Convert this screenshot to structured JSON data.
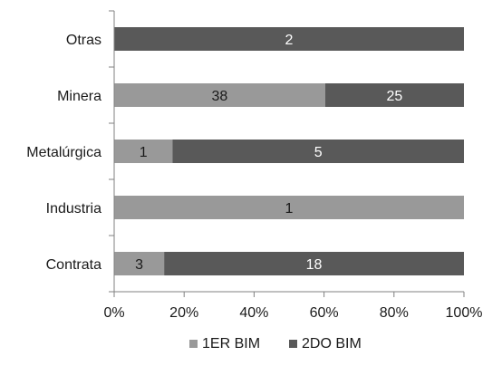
{
  "chart_data": {
    "type": "bar",
    "orientation": "horizontal",
    "stacked": "percent",
    "categories": [
      "Otras",
      "Minera",
      "Metalúrgica",
      "Industria",
      "Contrata"
    ],
    "series": [
      {
        "name": "1ER BIM",
        "color": "#999999",
        "values": [
          0,
          38,
          1,
          1,
          3
        ]
      },
      {
        "name": "2DO BIM",
        "color": "#595959",
        "values": [
          2,
          25,
          5,
          0,
          18
        ]
      }
    ],
    "data_label_colors": {
      "1ER BIM": "#1a1a1a",
      "2DO BIM": "#ffffff"
    },
    "x_ticks": [
      "0%",
      "20%",
      "40%",
      "60%",
      "80%",
      "100%"
    ],
    "xlim": [
      0,
      100
    ],
    "grid": false,
    "legend_position": "bottom",
    "axis_color": "#808080",
    "text_color": "#1a1a1a"
  }
}
